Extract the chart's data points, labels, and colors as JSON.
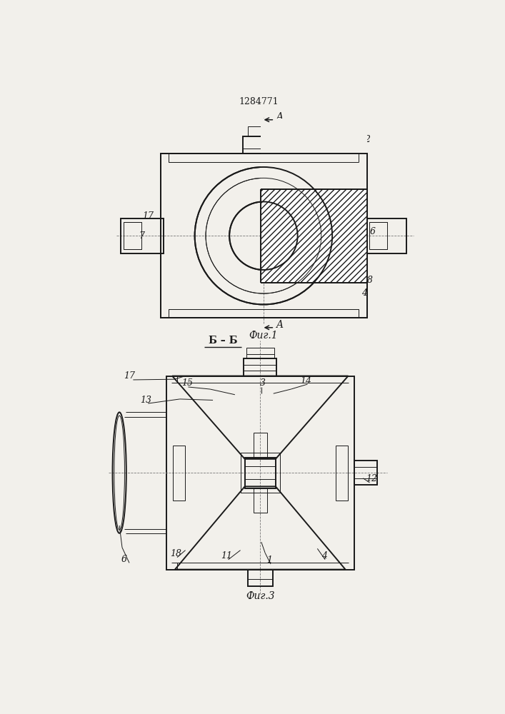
{
  "title": "1284771",
  "fig1_label": "Фиг.1",
  "fig3_label": "Фиг.3",
  "section_label": "Б – Б",
  "bg_color": "#f2f0eb",
  "line_color": "#1a1a1a",
  "font_size": 9,
  "title_font_size": 9
}
